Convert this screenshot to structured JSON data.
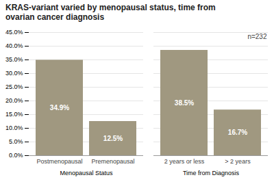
{
  "chart_data": {
    "type": "bar",
    "title": "KRAS-variant varied by menopausal status, time from\novarian cancer diagnosis",
    "categories": [
      "Postmenopausal",
      "Premenopausal",
      "2 years or less",
      "> 2 years"
    ],
    "groups": [
      "Menopausal Status",
      "Menopausal Status",
      "Time from Diagnosis",
      "Time from Diagnosis"
    ],
    "values": [
      34.9,
      12.5,
      38.5,
      16.7
    ],
    "value_labels": [
      "34.9%",
      "12.5%",
      "38.5%",
      "16.7%"
    ],
    "data_labels": true,
    "color": "#a09880",
    "ylim": [
      0,
      45
    ],
    "yticks": [
      {
        "value": 0,
        "label": "0.0%"
      },
      {
        "value": 5,
        "label": "5.0%"
      },
      {
        "value": 10,
        "label": "10.0%"
      },
      {
        "value": 15,
        "label": "15.0%"
      },
      {
        "value": 20,
        "label": "20.0%"
      },
      {
        "value": 25,
        "label": "25.0%"
      },
      {
        "value": 30,
        "label": "30.0%"
      },
      {
        "value": 35,
        "label": "35.0%"
      },
      {
        "value": 40,
        "label": "40.0%"
      },
      {
        "value": 45,
        "label": "45.0%"
      }
    ],
    "grid": true,
    "annotations": [
      {
        "text": "n=232"
      }
    ]
  }
}
